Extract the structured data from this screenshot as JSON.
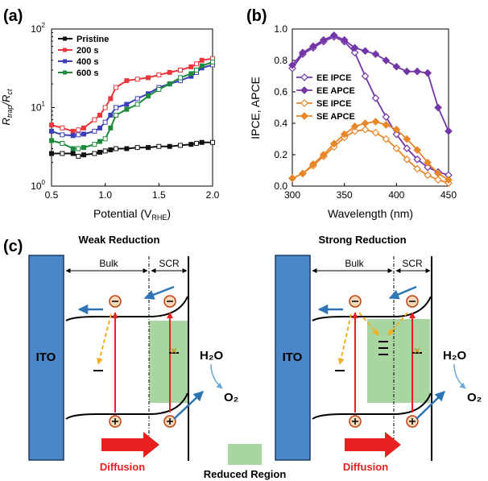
{
  "panel_a": {
    "tag": "(a)",
    "ylabel_main": "R",
    "ylabel_sub1": "trap",
    "ylabel_sep": "/R",
    "ylabel_sub2": "ct",
    "xlabel_main": "Potential (V",
    "xlabel_sub": "RHE",
    "xlabel_end": ")",
    "yticks": [
      {
        "base": "10",
        "exp": "0",
        "v": 1
      },
      {
        "base": "10",
        "exp": "1",
        "v": 10
      },
      {
        "base": "10",
        "exp": "2",
        "v": 100
      }
    ],
    "xticks": [
      "0.5",
      "1.0",
      "1.5",
      "2.0"
    ]
  },
  "panel_b": {
    "tag": "(b)",
    "ylabel": "IPCE, APCE",
    "xlabel": "Wavelength (nm)",
    "yticks": [
      "0.0",
      "0.2",
      "0.4",
      "0.6",
      "0.8",
      "1.0"
    ],
    "xticks": [
      "300",
      "350",
      "400",
      "450"
    ]
  },
  "panel_c": {
    "tag": "(c)",
    "left_title": "Weak Reduction",
    "right_title": "Strong Reduction",
    "bulk_label": "Bulk",
    "scr_label": "SCR",
    "electrode_label": "ITO",
    "water_label": "H₂O",
    "oxygen_label": "O₂",
    "diffusion_label": "Diffusion",
    "legend_label": "Reduced Region"
  },
  "colors": {
    "pristine": "#111111",
    "s200": "#e8383d",
    "s400": "#3a3fb8",
    "s600": "#1e8a3c",
    "ee": "#7236a6",
    "se": "#e8862a",
    "ito": "#4a86c8",
    "reduced": "#a8d5a0",
    "arrow_blue": "#2e75b6",
    "arrow_red": "#e82020",
    "dash_yellow": "#f0b020"
  },
  "chart_data": [
    {
      "type": "line",
      "panel": "a",
      "xlabel": "Potential (V_RHE)",
      "ylabel": "R_trap/R_ct",
      "yscale": "log",
      "xlim": [
        0.5,
        2.0
      ],
      "ylim": [
        1,
        100
      ],
      "legend": "top-left",
      "x": [
        0.5,
        0.6,
        0.7,
        0.75,
        0.8,
        0.9,
        0.95,
        1.0,
        1.05,
        1.1,
        1.2,
        1.3,
        1.4,
        1.5,
        1.6,
        1.7,
        1.8,
        1.85,
        1.9,
        2.0
      ],
      "series": [
        {
          "name": "Pristine",
          "color": "#111111",
          "values": [
            2.6,
            2.6,
            2.6,
            2.4,
            2.5,
            2.6,
            2.7,
            2.8,
            2.9,
            3.0,
            3.0,
            3.1,
            3.1,
            3.2,
            3.2,
            3.3,
            3.4,
            3.5,
            3.6,
            3.6
          ]
        },
        {
          "name": "200 s",
          "color": "#e8383d",
          "values": [
            6.0,
            5.5,
            5.0,
            5.2,
            5.5,
            7.0,
            8.0,
            10.0,
            13.0,
            18.0,
            22.0,
            23.0,
            24.0,
            26.0,
            28.0,
            30.0,
            33.0,
            36.0,
            40.0,
            42.0
          ]
        },
        {
          "name": "400 s",
          "color": "#3a3fb8",
          "values": [
            5.0,
            4.5,
            4.4,
            4.5,
            4.6,
            5.0,
            5.5,
            6.5,
            8.0,
            10.0,
            11.0,
            13.0,
            15.0,
            18.0,
            20.0,
            22.0,
            25.0,
            28.0,
            32.0,
            35.0
          ]
        },
        {
          "name": "600 s",
          "color": "#1e8a3c",
          "values": [
            3.8,
            3.5,
            3.0,
            3.0,
            3.1,
            3.4,
            3.7,
            4.0,
            5.5,
            8.0,
            9.5,
            11.0,
            14.0,
            17.0,
            20.0,
            24.0,
            27.0,
            30.0,
            34.0,
            38.0
          ]
        }
      ]
    },
    {
      "type": "line",
      "panel": "b",
      "xlabel": "Wavelength (nm)",
      "ylabel": "IPCE, APCE",
      "xlim": [
        300,
        450
      ],
      "ylim": [
        0,
        1.0
      ],
      "legend": "left",
      "series": [
        {
          "name": "EE IPCE",
          "color": "#7236a6",
          "marker": "open-diamond",
          "x": [
            300,
            310,
            320,
            330,
            340,
            350,
            360,
            370,
            380,
            390,
            400,
            410,
            420,
            430,
            440,
            450
          ],
          "values": [
            0.75,
            0.84,
            0.88,
            0.92,
            0.95,
            0.92,
            0.85,
            0.7,
            0.56,
            0.44,
            0.33,
            0.24,
            0.17,
            0.12,
            0.09,
            0.07
          ]
        },
        {
          "name": "EE APCE",
          "color": "#7236a6",
          "marker": "filled-diamond",
          "x": [
            300,
            310,
            320,
            330,
            340,
            350,
            360,
            370,
            380,
            390,
            400,
            410,
            420,
            430,
            440,
            450
          ],
          "values": [
            0.77,
            0.85,
            0.89,
            0.93,
            0.96,
            0.93,
            0.88,
            0.86,
            0.84,
            0.8,
            0.76,
            0.73,
            0.73,
            0.72,
            0.5,
            0.35
          ]
        },
        {
          "name": "SE IPCE",
          "color": "#e8862a",
          "marker": "open-diamond",
          "x": [
            300,
            310,
            320,
            330,
            340,
            350,
            360,
            370,
            380,
            390,
            400,
            410,
            420,
            430,
            440,
            450
          ],
          "values": [
            0.05,
            0.08,
            0.13,
            0.19,
            0.25,
            0.31,
            0.35,
            0.36,
            0.34,
            0.3,
            0.24,
            0.17,
            0.11,
            0.07,
            0.04,
            0.02
          ]
        },
        {
          "name": "SE APCE",
          "color": "#e8862a",
          "marker": "filled-diamond",
          "x": [
            300,
            310,
            320,
            330,
            340,
            350,
            360,
            370,
            380,
            390,
            400,
            410,
            420,
            430,
            440,
            450
          ],
          "values": [
            0.05,
            0.08,
            0.14,
            0.2,
            0.27,
            0.33,
            0.38,
            0.4,
            0.41,
            0.39,
            0.36,
            0.3,
            0.23,
            0.15,
            0.08,
            0.04
          ]
        }
      ]
    }
  ]
}
